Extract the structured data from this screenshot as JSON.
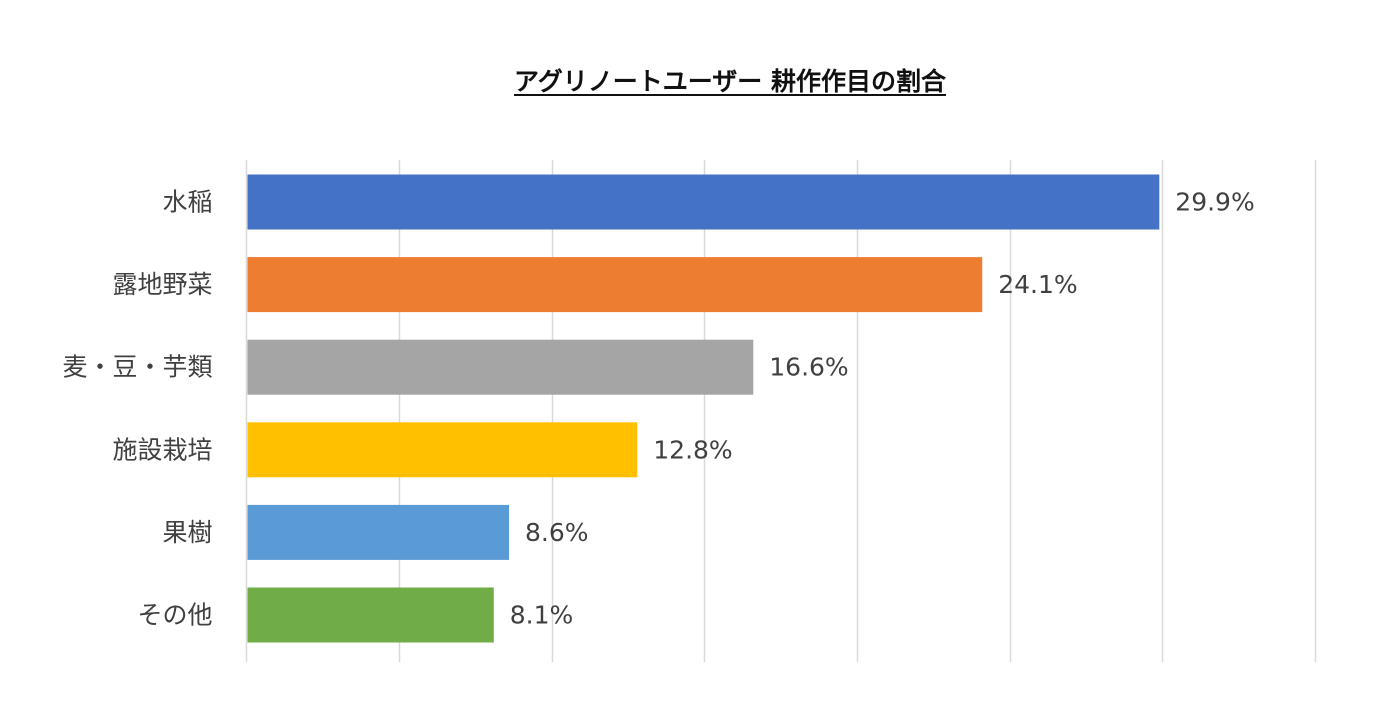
{
  "chart_data": {
    "type": "bar",
    "orientation": "horizontal",
    "title": "アグリノートユーザー 耕作作目の割合",
    "categories": [
      "水稲",
      "露地野菜",
      "麦・豆・芋類",
      "施設栽培",
      "果樹",
      "その他"
    ],
    "values": [
      29.9,
      24.1,
      16.6,
      12.8,
      8.6,
      8.1
    ],
    "value_labels": [
      "29.9%",
      "24.1%",
      "16.6%",
      "12.8%",
      "8.6%",
      "8.1%"
    ],
    "colors": [
      "#4472C4",
      "#ED7D31",
      "#A5A5A5",
      "#FFC000",
      "#5B9BD5",
      "#70AD47"
    ],
    "xlim": [
      0,
      35
    ],
    "grid": true,
    "legend": "none"
  }
}
